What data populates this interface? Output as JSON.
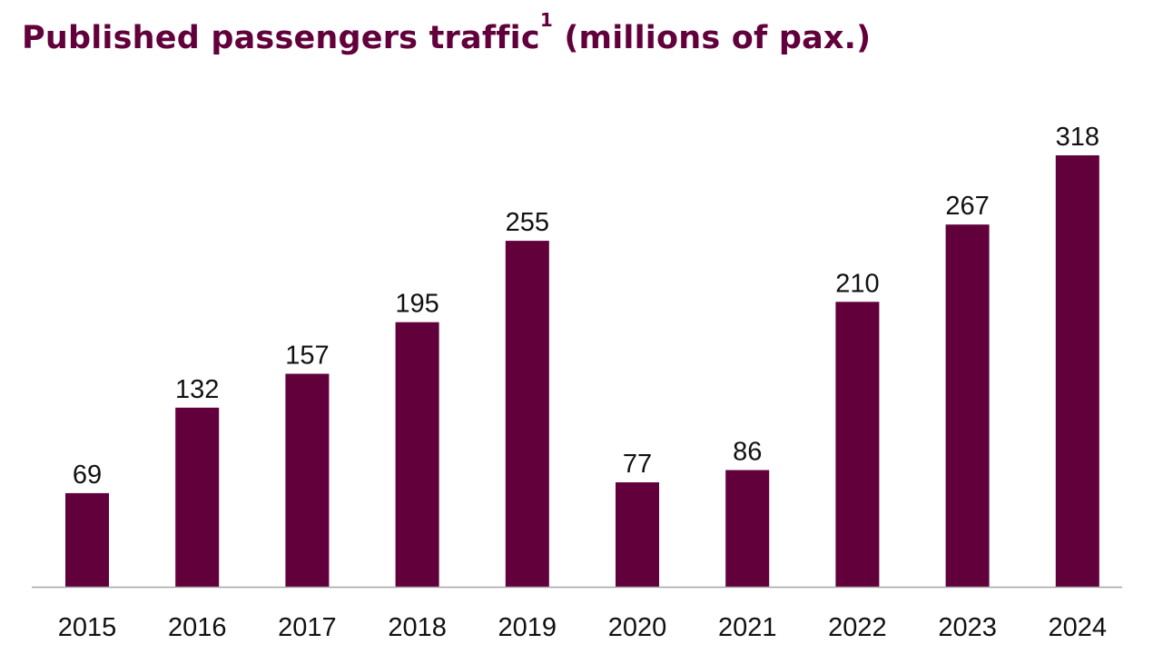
{
  "chart_data": {
    "type": "bar",
    "title": "Published passengers traffic",
    "title_superscript": "1",
    "title_suffix": " (millions of pax.)",
    "xlabel": "",
    "ylabel": "",
    "categories": [
      "2015",
      "2016",
      "2017",
      "2018",
      "2019",
      "2020",
      "2021",
      "2022",
      "2023",
      "2024"
    ],
    "values": [
      69,
      132,
      157,
      195,
      255,
      77,
      86,
      210,
      267,
      318
    ],
    "value_labels": [
      "69",
      "132",
      "157",
      "195",
      "255",
      "77",
      "86",
      "210",
      "267",
      "318"
    ],
    "ylim": [
      0,
      318
    ],
    "grid": false,
    "legend": "none",
    "bar_color": "#62003c",
    "axis_color": "#a6a6a6"
  }
}
